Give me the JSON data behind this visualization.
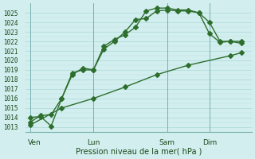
{
  "title": "Pression niveau de la mer( hPa )",
  "ylim": [
    1012.5,
    1026.0
  ],
  "yticks": [
    1013,
    1014,
    1015,
    1016,
    1017,
    1018,
    1019,
    1020,
    1021,
    1022,
    1023,
    1024,
    1025
  ],
  "xtick_labels": [
    "Ven",
    "Lun",
    "Sam",
    "Dim"
  ],
  "bg_color": "#d2eeee",
  "grid_major_color": "#aad8d8",
  "grid_minor_color": "#c0e4e4",
  "vline_color": "#7ab0b0",
  "line_color": "#2d6e2d",
  "line1_x": [
    0,
    0.5,
    1.0,
    1.5,
    2.0,
    2.5,
    3.0,
    3.5,
    4.0,
    4.5,
    5.0,
    5.5,
    6.0,
    6.5,
    7.0,
    7.5,
    8.0,
    8.5,
    9.0,
    9.5,
    10.0
  ],
  "line1_y": [
    1013.5,
    1014.2,
    1014.3,
    1016.0,
    1018.7,
    1019.0,
    1019.0,
    1021.2,
    1022.0,
    1023.0,
    1024.3,
    1024.4,
    1025.2,
    1025.3,
    1025.2,
    1025.2,
    1025.0,
    1024.0,
    1022.0,
    1022.0,
    1021.8
  ],
  "line2_x": [
    0,
    0.5,
    1.0,
    1.5,
    2.0,
    2.5,
    3.0,
    3.5,
    4.0,
    4.5,
    5.0,
    5.5,
    6.0,
    6.5,
    7.0,
    7.5,
    8.0,
    8.5,
    9.0,
    9.5,
    10.0
  ],
  "line2_y": [
    1014.0,
    1014.1,
    1013.1,
    1016.0,
    1018.5,
    1019.2,
    1019.0,
    1021.5,
    1022.2,
    1022.7,
    1023.5,
    1025.2,
    1025.5,
    1025.5,
    1025.3,
    1025.3,
    1025.0,
    1022.8,
    1021.9,
    1022.0,
    1022.0
  ],
  "line3_x": [
    0,
    1.5,
    3.0,
    4.5,
    6.0,
    7.5,
    9.5,
    10.0
  ],
  "line3_y": [
    1013.2,
    1015.0,
    1016.0,
    1017.2,
    1018.5,
    1019.5,
    1020.5,
    1020.8
  ],
  "vline_positions": [
    0,
    3.0,
    6.5,
    8.5
  ],
  "n_xdays": 10.0
}
